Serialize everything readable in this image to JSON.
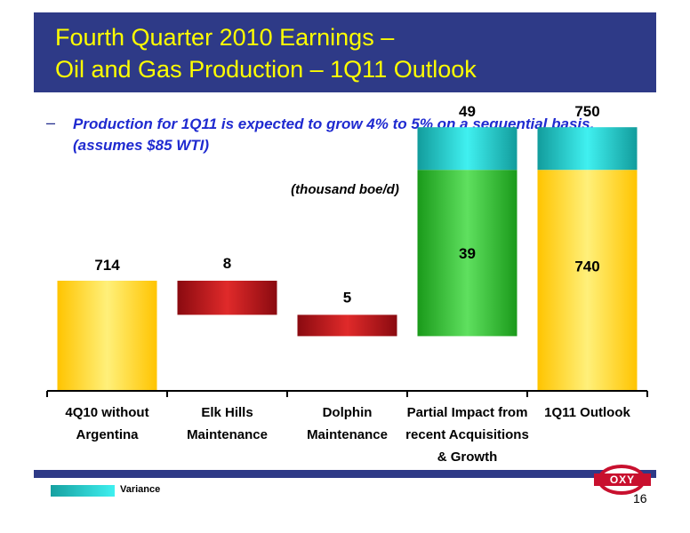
{
  "title": {
    "line1": "Fourth Quarter 2010 Earnings –",
    "line2": "Oil and Gas Production – 1Q11 Outlook"
  },
  "bullet": {
    "dash": "–",
    "text": "Production for 1Q11 is expected to grow 4% to 5% on a sequential basis.  (assumes $85 WTI)"
  },
  "unit_label": "(thousand boe/d)",
  "chart_data": {
    "type": "bar",
    "subtype": "waterfall",
    "unit": "(thousand boe/d)",
    "categories": [
      [
        "4Q10 without",
        "Argentina"
      ],
      [
        "Elk Hills",
        "Maintenance"
      ],
      [
        "Dolphin",
        "Maintenance"
      ],
      [
        "Partial Impact from",
        "recent Acquisitions",
        "& Growth"
      ],
      [
        "1Q11 Outlook"
      ]
    ],
    "bars": [
      {
        "kind": "total",
        "base": 0,
        "top": 714,
        "label": "714"
      },
      {
        "kind": "decrease",
        "base": 706,
        "top": 714,
        "label": "8"
      },
      {
        "kind": "decrease",
        "base": 701,
        "top": 706,
        "label": "5"
      },
      {
        "kind": "increase",
        "base": 701,
        "top": 740,
        "label": "39",
        "variance_top": 750,
        "variance_label": "49"
      },
      {
        "kind": "total",
        "base": 0,
        "top": 740,
        "label": "740",
        "variance_top": 750,
        "variance_label": "750"
      }
    ],
    "ylim": [
      0,
      800
    ],
    "colors": {
      "total": "#ffd21f",
      "decrease": "#c0141c",
      "increase": "#2eb82e",
      "variance": "#20c8c8"
    },
    "legend": [
      {
        "name": "Variance",
        "color": "#20c8c8"
      }
    ],
    "legend_position": "bottom-left",
    "grid": false
  },
  "logo_text": "OXY",
  "page_number": "16"
}
